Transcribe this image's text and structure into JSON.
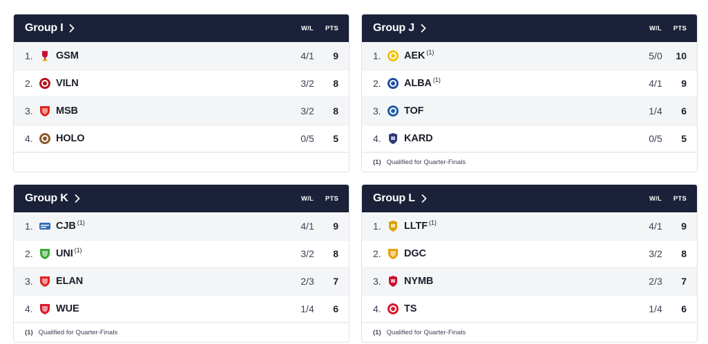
{
  "columns": {
    "wl": "W/L",
    "pts": "PTS"
  },
  "groups": [
    {
      "title": "Group I",
      "footnote": null,
      "rows": [
        {
          "rank": "1.",
          "team": "GSM",
          "mark": "",
          "wl": "4/1",
          "pts": "9",
          "logo_color": "#c8102e",
          "logo_shape": "cup-icon"
        },
        {
          "rank": "2.",
          "team": "VILN",
          "mark": "",
          "wl": "3/2",
          "pts": "8",
          "logo_color": "#b5121b",
          "logo_shape": "round-badge-icon"
        },
        {
          "rank": "3.",
          "team": "MSB",
          "mark": "",
          "wl": "3/2",
          "pts": "8",
          "logo_color": "#e2231a",
          "logo_shape": "shield-icon"
        },
        {
          "rank": "4.",
          "team": "HOLO",
          "mark": "",
          "wl": "0/5",
          "pts": "5",
          "logo_color": "#8a5a2b",
          "logo_shape": "round-badge-icon"
        }
      ]
    },
    {
      "title": "Group J",
      "footnote": {
        "mark": "(1)",
        "text": "Qualified for Quarter-Finals"
      },
      "rows": [
        {
          "rank": "1.",
          "team": "AEK",
          "mark": "(1)",
          "wl": "5/0",
          "pts": "10",
          "logo_color": "#f2c200",
          "logo_shape": "round-badge-icon"
        },
        {
          "rank": "2.",
          "team": "ALBA",
          "mark": "(1)",
          "wl": "4/1",
          "pts": "9",
          "logo_color": "#1d4fa0",
          "logo_shape": "round-badge-icon"
        },
        {
          "rank": "3.",
          "team": "TOF",
          "mark": "",
          "wl": "1/4",
          "pts": "6",
          "logo_color": "#1e5ca8",
          "logo_shape": "round-badge-icon"
        },
        {
          "rank": "4.",
          "team": "KARD",
          "mark": "",
          "wl": "0/5",
          "pts": "5",
          "logo_color": "#2e3a7a",
          "logo_shape": "crest-icon"
        }
      ]
    },
    {
      "title": "Group K",
      "footnote": {
        "mark": "(1)",
        "text": "Qualified for Quarter-Finals"
      },
      "rows": [
        {
          "rank": "1.",
          "team": "CJB",
          "mark": "(1)",
          "wl": "4/1",
          "pts": "9",
          "logo_color": "#2f6db5",
          "logo_shape": "wordmark-icon"
        },
        {
          "rank": "2.",
          "team": "UNI",
          "mark": "(1)",
          "wl": "3/2",
          "pts": "8",
          "logo_color": "#3aa935",
          "logo_shape": "shield-icon"
        },
        {
          "rank": "3.",
          "team": "ELAN",
          "mark": "",
          "wl": "2/3",
          "pts": "7",
          "logo_color": "#e2231a",
          "logo_shape": "shield-icon"
        },
        {
          "rank": "4.",
          "team": "WUE",
          "mark": "",
          "wl": "1/4",
          "pts": "6",
          "logo_color": "#d7192d",
          "logo_shape": "shield-icon"
        }
      ]
    },
    {
      "title": "Group L",
      "footnote": {
        "mark": "(1)",
        "text": "Qualified for Quarter-Finals"
      },
      "rows": [
        {
          "rank": "1.",
          "team": "LLTF",
          "mark": "(1)",
          "wl": "4/1",
          "pts": "9",
          "logo_color": "#d9a400",
          "logo_shape": "crest-icon"
        },
        {
          "rank": "2.",
          "team": "DGC",
          "mark": "",
          "wl": "3/2",
          "pts": "8",
          "logo_color": "#e6a100",
          "logo_shape": "shield-icon"
        },
        {
          "rank": "3.",
          "team": "NYMB",
          "mark": "",
          "wl": "2/3",
          "pts": "7",
          "logo_color": "#c8102e",
          "logo_shape": "crest-icon"
        },
        {
          "rank": "4.",
          "team": "TS",
          "mark": "",
          "wl": "1/4",
          "pts": "6",
          "logo_color": "#d7192d",
          "logo_shape": "round-badge-icon"
        }
      ]
    }
  ]
}
